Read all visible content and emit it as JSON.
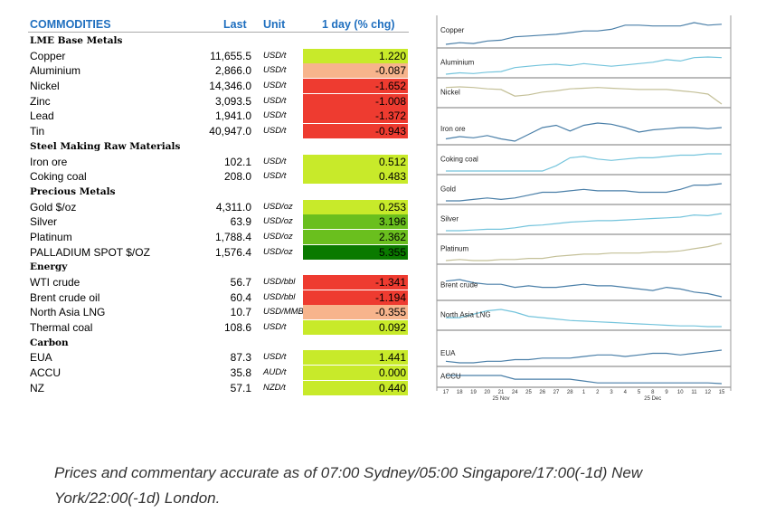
{
  "header": {
    "col_name": "COMMODITIES",
    "col_last": "Last",
    "col_unit": "Unit",
    "col_chg": "1 day (% chg)"
  },
  "colors": {
    "header_blue": "#1f6fbf",
    "strong_green": "#0a7a00",
    "green": "#6abf1e",
    "light_green": "#c8ea2a",
    "peach": "#f7b48c",
    "red": "#ee3b30",
    "line_blue": "#4a7fa8",
    "line_teal": "#74c4dc",
    "line_khaki": "#c4c098"
  },
  "rows": [
    {
      "type": "section",
      "name": "LME Base Metals"
    },
    {
      "name": "Copper",
      "last": "11,655.5",
      "unit": "USD/t",
      "chg": "1.220",
      "color": "#c8ea2a"
    },
    {
      "name": "Aluminium",
      "last": "2,866.0",
      "unit": "USD/t",
      "chg": "-0.087",
      "color": "#f7b48c"
    },
    {
      "name": "Nickel",
      "last": "14,346.0",
      "unit": "USD/t",
      "chg": "-1.652",
      "color": "#ee3b30"
    },
    {
      "name": "Zinc",
      "last": "3,093.5",
      "unit": "USD/t",
      "chg": "-1.008",
      "color": "#ee3b30"
    },
    {
      "name": "Lead",
      "last": "1,941.0",
      "unit": "USD/t",
      "chg": "-1.372",
      "color": "#ee3b30"
    },
    {
      "name": "Tin",
      "last": "40,947.0",
      "unit": "USD/t",
      "chg": "-0.943",
      "color": "#ee3b30"
    },
    {
      "type": "section",
      "name": "Steel Making Raw Materials"
    },
    {
      "name": "Iron ore",
      "last": "102.1",
      "unit": "USD/t",
      "chg": "0.512",
      "color": "#c8ea2a"
    },
    {
      "name": "Coking coal",
      "last": "208.0",
      "unit": "USD/t",
      "chg": "0.483",
      "color": "#c8ea2a"
    },
    {
      "type": "section",
      "name": "Precious Metals"
    },
    {
      "name": "Gold $/oz",
      "last": "4,311.0",
      "unit": "USD/oz",
      "chg": "0.253",
      "color": "#c8ea2a"
    },
    {
      "name": "Silver",
      "last": "63.9",
      "unit": "USD/oz",
      "chg": "3.196",
      "color": "#6abf1e"
    },
    {
      "name": "Platinum",
      "last": "1,788.4",
      "unit": "USD/oz",
      "chg": "2.362",
      "color": "#6abf1e"
    },
    {
      "name": "PALLADIUM SPOT $/OZ",
      "last": "1,576.4",
      "unit": "USD/oz",
      "chg": "5.355",
      "color": "#0a7a00"
    },
    {
      "type": "section",
      "name": "Energy"
    },
    {
      "name": "WTI crude",
      "last": "56.7",
      "unit": "USD/bbl",
      "chg": "-1.341",
      "color": "#ee3b30"
    },
    {
      "name": "Brent crude oil",
      "last": "60.4",
      "unit": "USD/bbl",
      "chg": "-1.194",
      "color": "#ee3b30"
    },
    {
      "name": "North Asia LNG",
      "last": "10.7",
      "unit": "USD/MMBtu",
      "chg": "-0.355",
      "color": "#f7b48c"
    },
    {
      "name": "Thermal coal",
      "last": "108.6",
      "unit": "USD/t",
      "chg": "0.092",
      "color": "#c8ea2a"
    },
    {
      "type": "section",
      "name": "Carbon"
    },
    {
      "name": "EUA",
      "last": "87.3",
      "unit": "USD/t",
      "chg": "1.441",
      "color": "#c8ea2a"
    },
    {
      "name": "ACCU",
      "last": "35.8",
      "unit": "AUD/t",
      "chg": "0.000",
      "color": "#c8ea2a"
    },
    {
      "name": "NZ",
      "last": "57.1",
      "unit": "NZD/t",
      "chg": "0.440",
      "color": "#c8ea2a"
    }
  ],
  "chart_data": {
    "type": "line",
    "x": [
      "17",
      "18",
      "19",
      "20",
      "21",
      "24",
      "25",
      "26",
      "27",
      "28",
      "1",
      "2",
      "3",
      "4",
      "5",
      "8",
      "9",
      "10",
      "11",
      "12",
      "15"
    ],
    "x_month_labels": [
      {
        "at": "21",
        "text": "25 Nov"
      },
      {
        "at": "8",
        "text": "25 Dec"
      }
    ],
    "series": [
      {
        "name": "Copper",
        "color": "#4a7fa8",
        "values": [
          22,
          24,
          23,
          26,
          27,
          31,
          32,
          33,
          34,
          36,
          38,
          38,
          40,
          45,
          45,
          44,
          44,
          44,
          48,
          45,
          46
        ]
      },
      {
        "name": "Aluminium",
        "color": "#74c4dc",
        "values": [
          30,
          32,
          31,
          33,
          34,
          40,
          42,
          44,
          45,
          43,
          46,
          44,
          42,
          44,
          46,
          48,
          52,
          50,
          55,
          56,
          55
        ]
      },
      {
        "name": "Nickel",
        "color": "#c4c098",
        "values": [
          55,
          56,
          55,
          53,
          52,
          42,
          44,
          48,
          50,
          53,
          54,
          55,
          54,
          53,
          52,
          52,
          52,
          50,
          48,
          45,
          30
        ]
      },
      {
        "name": "Iron ore",
        "color": "#4a7fa8",
        "values": [
          40,
          42,
          41,
          43,
          40,
          38,
          44,
          50,
          52,
          47,
          52,
          54,
          53,
          50,
          46,
          48,
          49,
          50,
          50,
          49,
          50
        ]
      },
      {
        "name": "Coking coal",
        "color": "#74c4dc",
        "values": [
          47,
          47,
          47,
          47,
          47,
          47,
          47,
          47,
          51,
          57,
          58,
          56,
          55,
          56,
          57,
          57,
          58,
          59,
          59,
          60,
          60
        ]
      },
      {
        "name": "Gold",
        "color": "#4a7fa8",
        "values": [
          40,
          40,
          41,
          42,
          41,
          42,
          44,
          46,
          46,
          47,
          48,
          47,
          47,
          47,
          46,
          46,
          46,
          48,
          51,
          51,
          52
        ]
      },
      {
        "name": "Silver",
        "color": "#74c4dc",
        "values": [
          30,
          30,
          31,
          32,
          32,
          34,
          37,
          38,
          40,
          42,
          43,
          44,
          44,
          45,
          46,
          47,
          48,
          49,
          52,
          51,
          54
        ]
      },
      {
        "name": "Platinum",
        "color": "#c4c098",
        "values": [
          30,
          31,
          30,
          30,
          31,
          31,
          32,
          32,
          34,
          35,
          36,
          36,
          37,
          37,
          37,
          38,
          38,
          39,
          41,
          43,
          46
        ]
      },
      {
        "name": "Brent crude",
        "color": "#4a7fa8",
        "values": [
          66,
          67,
          65,
          64,
          64,
          62,
          63,
          62,
          62,
          63,
          64,
          63,
          63,
          62,
          61,
          60,
          62,
          61,
          59,
          58,
          56
        ]
      },
      {
        "name": "North Asia LNG",
        "color": "#74c4dc",
        "values": [
          12,
          12,
          12.5,
          13,
          13.2,
          12.8,
          12.2,
          12,
          11.8,
          11.6,
          11.5,
          11.4,
          11.3,
          11.2,
          11.1,
          11,
          10.9,
          10.8,
          10.8,
          10.7,
          10.7
        ]
      },
      {
        "name": "EUA",
        "color": "#4a7fa8",
        "values": [
          80,
          79,
          79,
          80,
          80,
          81,
          81,
          82,
          82,
          82,
          83,
          84,
          84,
          83,
          84,
          85,
          85,
          84,
          85,
          86,
          87
        ]
      },
      {
        "name": "ACCU",
        "color": "#4a7fa8",
        "values": [
          38,
          38,
          38,
          38,
          38,
          37,
          37,
          37,
          37,
          37,
          36.5,
          36,
          36,
          36,
          36,
          36,
          36,
          36,
          36,
          36,
          35.8
        ]
      }
    ]
  },
  "footer_note": "Prices and commentary accurate as of 07:00 Sydney/05:00 Singapore/17:00(-1d) New York/22:00(-1d) London."
}
